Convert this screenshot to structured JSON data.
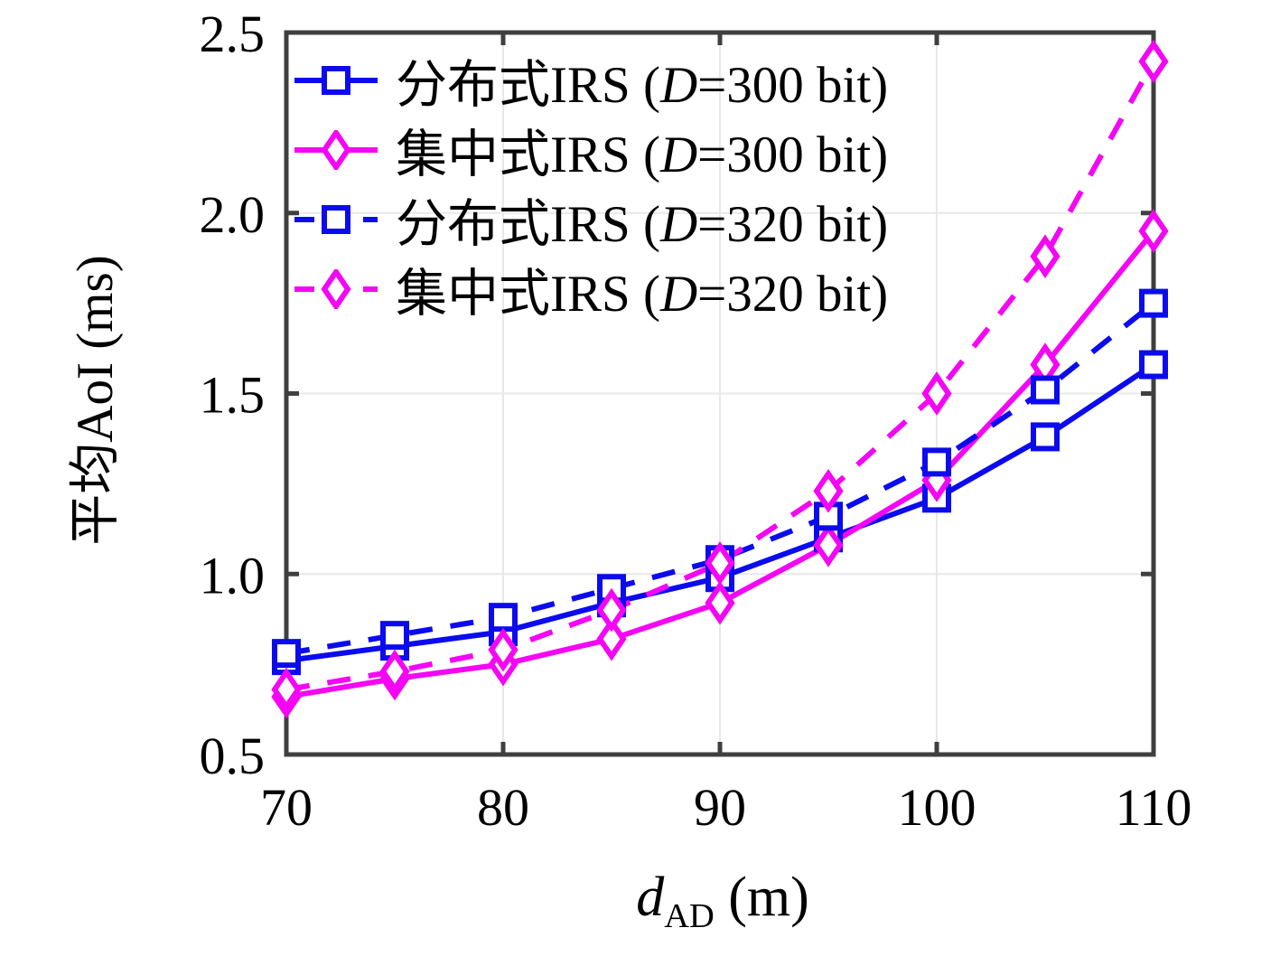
{
  "style": {
    "background": "#ffffff",
    "axis_color": "#3f3f3f",
    "grid_color": "#e8e8e8",
    "text_color": "#000000",
    "blue": "#0b0bee",
    "magenta": "#f406f4"
  },
  "chart_data": {
    "type": "line",
    "x": [
      70,
      75,
      80,
      85,
      90,
      95,
      100,
      105,
      110
    ],
    "series": [
      {
        "label_open": "分布式IRS (",
        "label_var": "D",
        "label_close": "=300 bit)",
        "color": "#0b0bee",
        "linestyle": "solid",
        "marker": "square",
        "values": [
          0.76,
          0.8,
          0.84,
          0.92,
          0.99,
          1.1,
          1.21,
          1.38,
          1.58
        ]
      },
      {
        "label_open": "集中式IRS (",
        "label_var": "D",
        "label_close": "=300 bit)",
        "color": "#f406f4",
        "linestyle": "solid",
        "marker": "diamond",
        "values": [
          0.66,
          0.71,
          0.75,
          0.82,
          0.92,
          1.08,
          1.26,
          1.58,
          1.95
        ]
      },
      {
        "label_open": "分布式IRS (",
        "label_var": "D",
        "label_close": "=320 bit)",
        "color": "#0b0bee",
        "linestyle": "dashed",
        "marker": "square",
        "values": [
          0.78,
          0.83,
          0.88,
          0.96,
          1.04,
          1.16,
          1.31,
          1.51,
          1.75
        ]
      },
      {
        "label_open": "集中式IRS (",
        "label_var": "D",
        "label_close": "=320 bit)",
        "color": "#f406f4",
        "linestyle": "dashed",
        "marker": "diamond",
        "values": [
          0.68,
          0.73,
          0.79,
          0.9,
          1.03,
          1.23,
          1.5,
          1.88,
          2.42
        ]
      }
    ],
    "xlabel": {
      "symbol": "d",
      "subscript": "AD",
      "unit": " (m)"
    },
    "ylabel": "平均AoI (ms)",
    "xlim": [
      70,
      110
    ],
    "ylim": [
      0.5,
      2.5
    ],
    "xticks": [
      70,
      80,
      90,
      100,
      110
    ],
    "yticks": [
      "0.5",
      "1.0",
      "1.5",
      "2.0",
      "2.5"
    ],
    "grid": true,
    "legend_position": "top-left"
  }
}
